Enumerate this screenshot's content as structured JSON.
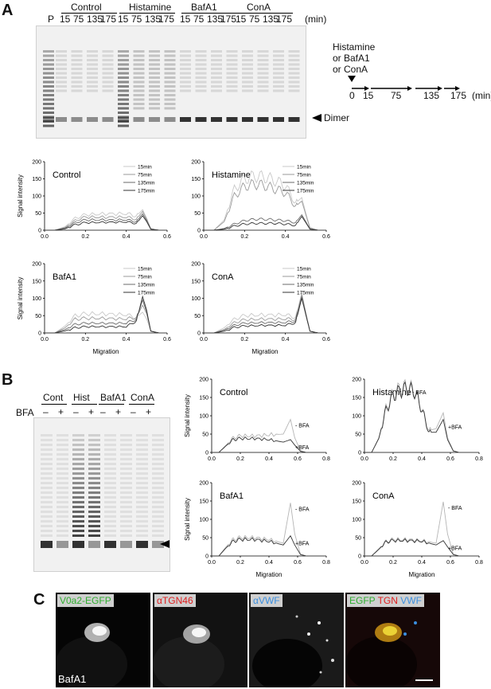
{
  "panels": {
    "A": "A",
    "B": "B",
    "C": "C"
  },
  "panelA": {
    "lane_p": "P",
    "groups": [
      "Control",
      "Histamine",
      "BafA1",
      "ConA"
    ],
    "times": [
      "15",
      "75",
      "135",
      "175"
    ],
    "min_unit": "(min)",
    "dimer_label": "Dimer",
    "timeline": {
      "treat1": "Histamine",
      "treat2": "or BafA1",
      "treat3": "or ConA",
      "ticks": [
        "0",
        "15",
        "75",
        "135",
        "175"
      ],
      "unit": "(min)"
    }
  },
  "panelB": {
    "groups": [
      "Cont",
      "Hist",
      "BafA1",
      "ConA"
    ],
    "bfa_label": "BFA",
    "signs": [
      "–",
      "+",
      "–",
      "+",
      "–",
      "+",
      "–",
      "+"
    ]
  },
  "panelC": {
    "ch1": "V0a2-EGFP",
    "ch2": "αTGN46",
    "ch3": "αVWF",
    "merge_egfp": "EGFP",
    "merge_tgn": "TGN",
    "merge_vwf": "VWF",
    "condition": "BafA1",
    "colors": {
      "green": "#2fae2f",
      "red": "#e02020",
      "blue": "#3b8fe0"
    }
  },
  "chart_data": [
    {
      "type": "line",
      "title": "Control",
      "ylabel": "Signal intensity",
      "xlabel": "",
      "xlim": [
        0,
        0.6
      ],
      "ylim": [
        0,
        200
      ],
      "xticks": [
        "0.0",
        "0.2",
        "0.4",
        "0.6"
      ],
      "yticks": [
        "0",
        "50",
        "100",
        "150",
        "200"
      ],
      "legend": [
        "15min",
        "75min",
        "135min",
        "175min"
      ],
      "series": [
        {
          "name": "15min",
          "x": [
            0,
            0.05,
            0.1,
            0.15,
            0.2,
            0.3,
            0.4,
            0.45,
            0.48,
            0.5,
            0.52,
            0.56
          ],
          "y": [
            0,
            0,
            10,
            35,
            45,
            48,
            48,
            42,
            60,
            35,
            5,
            0
          ]
        },
        {
          "name": "75min",
          "x": [
            0,
            0.05,
            0.1,
            0.15,
            0.2,
            0.3,
            0.4,
            0.45,
            0.48,
            0.5,
            0.52,
            0.56
          ],
          "y": [
            0,
            0,
            8,
            28,
            38,
            38,
            38,
            32,
            55,
            32,
            4,
            0
          ]
        },
        {
          "name": "135min",
          "x": [
            0,
            0.05,
            0.1,
            0.15,
            0.2,
            0.3,
            0.4,
            0.45,
            0.48,
            0.5,
            0.52,
            0.56
          ],
          "y": [
            0,
            0,
            6,
            22,
            30,
            30,
            30,
            25,
            48,
            28,
            3,
            0
          ]
        },
        {
          "name": "175min",
          "x": [
            0,
            0.05,
            0.1,
            0.15,
            0.2,
            0.3,
            0.4,
            0.45,
            0.48,
            0.5,
            0.52,
            0.56
          ],
          "y": [
            0,
            0,
            4,
            16,
            22,
            23,
            24,
            20,
            42,
            25,
            3,
            0
          ]
        }
      ]
    },
    {
      "type": "line",
      "title": "Histamine",
      "ylabel": "",
      "xlabel": "",
      "xlim": [
        0,
        0.6
      ],
      "ylim": [
        0,
        200
      ],
      "xticks": [
        "0.0",
        "0.2",
        "0.4",
        "0.6"
      ],
      "yticks": [
        "0",
        "50",
        "100",
        "150",
        "200"
      ],
      "legend": [
        "15min",
        "75min",
        "135min",
        "175min"
      ],
      "series": [
        {
          "name": "15min",
          "x": [
            0,
            0.05,
            0.1,
            0.15,
            0.2,
            0.25,
            0.3,
            0.35,
            0.4,
            0.45,
            0.48,
            0.5,
            0.52,
            0.56
          ],
          "y": [
            0,
            0,
            30,
            120,
            150,
            158,
            155,
            145,
            130,
            80,
            95,
            50,
            8,
            0
          ]
        },
        {
          "name": "75min",
          "x": [
            0,
            0.05,
            0.1,
            0.15,
            0.2,
            0.25,
            0.3,
            0.35,
            0.4,
            0.45,
            0.48,
            0.5,
            0.52,
            0.56
          ],
          "y": [
            0,
            0,
            25,
            100,
            128,
            135,
            130,
            120,
            110,
            70,
            85,
            45,
            6,
            0
          ]
        },
        {
          "name": "135min",
          "x": [
            0,
            0.05,
            0.1,
            0.15,
            0.2,
            0.25,
            0.3,
            0.35,
            0.4,
            0.45,
            0.48,
            0.5,
            0.52,
            0.56
          ],
          "y": [
            0,
            0,
            5,
            18,
            28,
            32,
            32,
            30,
            28,
            22,
            45,
            25,
            4,
            0
          ]
        },
        {
          "name": "175min",
          "x": [
            0,
            0.05,
            0.1,
            0.15,
            0.2,
            0.25,
            0.3,
            0.35,
            0.4,
            0.45,
            0.48,
            0.5,
            0.52,
            0.56
          ],
          "y": [
            0,
            0,
            3,
            12,
            18,
            20,
            20,
            20,
            18,
            14,
            40,
            22,
            3,
            0
          ]
        }
      ]
    },
    {
      "type": "line",
      "title": "BafA1",
      "ylabel": "Signal intensity",
      "xlabel": "Migration",
      "xlim": [
        0,
        0.6
      ],
      "ylim": [
        0,
        200
      ],
      "xticks": [
        "0.0",
        "0.2",
        "0.4",
        "0.6"
      ],
      "yticks": [
        "0",
        "50",
        "100",
        "150",
        "200"
      ],
      "legend": [
        "15min",
        "75min",
        "135min",
        "175min"
      ],
      "series": [
        {
          "name": "15min",
          "x": [
            0,
            0.05,
            0.1,
            0.15,
            0.2,
            0.3,
            0.4,
            0.45,
            0.48,
            0.5,
            0.52,
            0.56
          ],
          "y": [
            0,
            0,
            20,
            50,
            55,
            55,
            52,
            45,
            60,
            40,
            6,
            0
          ]
        },
        {
          "name": "75min",
          "x": [
            0,
            0.05,
            0.1,
            0.15,
            0.2,
            0.3,
            0.4,
            0.45,
            0.48,
            0.5,
            0.52,
            0.56
          ],
          "y": [
            0,
            0,
            15,
            40,
            42,
            42,
            40,
            45,
            80,
            55,
            6,
            0
          ]
        },
        {
          "name": "135min",
          "x": [
            0,
            0.05,
            0.1,
            0.15,
            0.2,
            0.3,
            0.4,
            0.45,
            0.48,
            0.5,
            0.52,
            0.56
          ],
          "y": [
            0,
            0,
            10,
            25,
            28,
            28,
            28,
            40,
            95,
            60,
            5,
            0
          ]
        },
        {
          "name": "175min",
          "x": [
            0,
            0.05,
            0.1,
            0.15,
            0.2,
            0.3,
            0.4,
            0.45,
            0.48,
            0.5,
            0.52,
            0.56
          ],
          "y": [
            0,
            0,
            6,
            15,
            18,
            18,
            18,
            35,
            105,
            65,
            5,
            0
          ]
        }
      ]
    },
    {
      "type": "line",
      "title": "ConA",
      "ylabel": "",
      "xlabel": "Migration",
      "xlim": [
        0,
        0.6
      ],
      "ylim": [
        0,
        200
      ],
      "xticks": [
        "0.0",
        "0.2",
        "0.4",
        "0.6"
      ],
      "yticks": [
        "0",
        "50",
        "100",
        "150",
        "200"
      ],
      "legend": [
        "15min",
        "75min",
        "135min",
        "175min"
      ],
      "series": [
        {
          "name": "15min",
          "x": [
            0,
            0.05,
            0.1,
            0.15,
            0.2,
            0.3,
            0.4,
            0.45,
            0.48,
            0.5,
            0.52,
            0.56
          ],
          "y": [
            0,
            0,
            15,
            40,
            50,
            52,
            52,
            45,
            115,
            60,
            6,
            0
          ]
        },
        {
          "name": "75min",
          "x": [
            0,
            0.05,
            0.1,
            0.15,
            0.2,
            0.3,
            0.4,
            0.45,
            0.48,
            0.5,
            0.52,
            0.56
          ],
          "y": [
            0,
            0,
            10,
            30,
            38,
            40,
            40,
            40,
            110,
            55,
            5,
            0
          ]
        },
        {
          "name": "135min",
          "x": [
            0,
            0.05,
            0.1,
            0.15,
            0.2,
            0.3,
            0.4,
            0.45,
            0.48,
            0.5,
            0.52,
            0.56
          ],
          "y": [
            0,
            0,
            8,
            22,
            28,
            30,
            30,
            35,
            105,
            55,
            5,
            0
          ]
        },
        {
          "name": "175min",
          "x": [
            0,
            0.05,
            0.1,
            0.15,
            0.2,
            0.3,
            0.4,
            0.45,
            0.48,
            0.5,
            0.52,
            0.56
          ],
          "y": [
            0,
            0,
            5,
            16,
            20,
            22,
            22,
            30,
            100,
            52,
            5,
            0
          ]
        }
      ]
    },
    {
      "type": "line",
      "title": "Control",
      "ylabel": "Signal intensity",
      "xlabel": "",
      "xlim": [
        0,
        0.8
      ],
      "ylim": [
        0,
        200
      ],
      "xticks": [
        "0.0",
        "0.2",
        "0.4",
        "0.6",
        "0.8"
      ],
      "yticks": [
        "0",
        "50",
        "100",
        "150",
        "200"
      ],
      "annotations": [
        "- BFA",
        "+BFA"
      ],
      "series": [
        {
          "name": "- BFA",
          "x": [
            0,
            0.05,
            0.1,
            0.15,
            0.2,
            0.3,
            0.4,
            0.5,
            0.55,
            0.58,
            0.62,
            0.66
          ],
          "y": [
            0,
            0,
            20,
            40,
            45,
            45,
            48,
            50,
            90,
            40,
            5,
            0
          ]
        },
        {
          "name": "+BFA",
          "x": [
            0,
            0.05,
            0.1,
            0.15,
            0.2,
            0.3,
            0.4,
            0.5,
            0.55,
            0.58,
            0.62,
            0.66
          ],
          "y": [
            0,
            0,
            18,
            35,
            38,
            38,
            35,
            28,
            35,
            20,
            3,
            0
          ]
        }
      ]
    },
    {
      "type": "line",
      "title": "Histamine",
      "ylabel": "",
      "xlabel": "",
      "xlim": [
        0,
        0.8
      ],
      "ylim": [
        0,
        200
      ],
      "xticks": [
        "0.0",
        "0.2",
        "0.4",
        "0.6",
        "0.8"
      ],
      "yticks": [
        "0",
        "50",
        "100",
        "150",
        "200"
      ],
      "annotations": [
        "- BFA",
        "+BFA"
      ],
      "series": [
        {
          "name": "- BFA",
          "x": [
            0,
            0.05,
            0.1,
            0.15,
            0.2,
            0.25,
            0.3,
            0.35,
            0.4,
            0.45,
            0.5,
            0.55,
            0.58,
            0.62,
            0.66
          ],
          "y": [
            0,
            0,
            40,
            120,
            160,
            175,
            180,
            170,
            120,
            60,
            65,
            108,
            40,
            5,
            0
          ]
        },
        {
          "name": "+BFA",
          "x": [
            0,
            0.05,
            0.1,
            0.15,
            0.2,
            0.25,
            0.3,
            0.35,
            0.4,
            0.45,
            0.5,
            0.55,
            0.58,
            0.62,
            0.66
          ],
          "y": [
            0,
            0,
            38,
            115,
            155,
            168,
            175,
            165,
            118,
            55,
            55,
            90,
            35,
            4,
            0
          ]
        }
      ]
    },
    {
      "type": "line",
      "title": "BafA1",
      "ylabel": "Signal intensity",
      "xlabel": "Migration",
      "xlim": [
        0,
        0.8
      ],
      "ylim": [
        0,
        200
      ],
      "xticks": [
        "0.0",
        "0.2",
        "0.4",
        "0.6",
        "0.8"
      ],
      "yticks": [
        "0",
        "50",
        "100",
        "150",
        "200"
      ],
      "annotations": [
        "- BFA",
        "+BFA"
      ],
      "series": [
        {
          "name": "- BFA",
          "x": [
            0,
            0.05,
            0.1,
            0.15,
            0.2,
            0.3,
            0.4,
            0.5,
            0.55,
            0.58,
            0.62,
            0.66
          ],
          "y": [
            0,
            0,
            25,
            45,
            50,
            50,
            45,
            35,
            145,
            60,
            5,
            0
          ]
        },
        {
          "name": "+BFA",
          "x": [
            0,
            0.05,
            0.1,
            0.15,
            0.2,
            0.3,
            0.4,
            0.5,
            0.55,
            0.58,
            0.62,
            0.66
          ],
          "y": [
            0,
            0,
            22,
            40,
            45,
            45,
            40,
            30,
            55,
            30,
            4,
            0
          ]
        }
      ]
    },
    {
      "type": "line",
      "title": "ConA",
      "ylabel": "",
      "xlabel": "Migration",
      "xlim": [
        0,
        0.8
      ],
      "ylim": [
        0,
        200
      ],
      "xticks": [
        "0.0",
        "0.2",
        "0.4",
        "0.6",
        "0.8"
      ],
      "yticks": [
        "0",
        "50",
        "100",
        "150",
        "200"
      ],
      "annotations": [
        "- BFA",
        "+BFA"
      ],
      "series": [
        {
          "name": "- BFA",
          "x": [
            0,
            0.05,
            0.1,
            0.15,
            0.2,
            0.3,
            0.4,
            0.5,
            0.55,
            0.58,
            0.62,
            0.66
          ],
          "y": [
            0,
            0,
            20,
            40,
            45,
            45,
            42,
            35,
            148,
            60,
            5,
            0
          ]
        },
        {
          "name": "+BFA",
          "x": [
            0,
            0.05,
            0.1,
            0.15,
            0.2,
            0.3,
            0.4,
            0.5,
            0.55,
            0.58,
            0.62,
            0.66
          ],
          "y": [
            0,
            0,
            18,
            38,
            42,
            42,
            40,
            30,
            42,
            25,
            4,
            0
          ]
        }
      ]
    }
  ]
}
